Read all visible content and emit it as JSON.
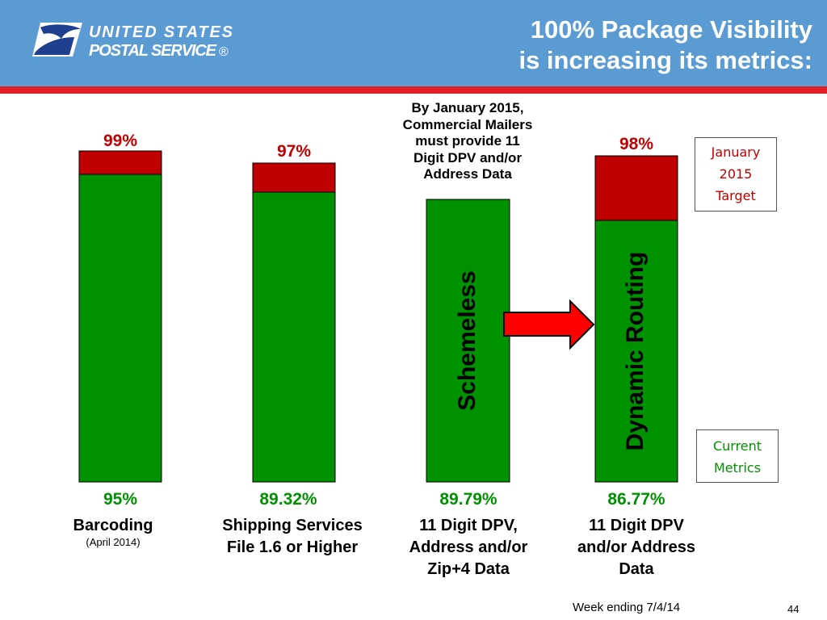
{
  "header": {
    "title_line1": "100% Package Visibility",
    "title_line2": "is increasing its metrics:",
    "logo_line1": "UNITED STATES",
    "logo_line2": "POSTAL SERVICE",
    "logo_mark": "®"
  },
  "colors": {
    "header_bg": "#5b9bd3",
    "header_rule": "#e41e26",
    "current": "#009100",
    "target": "#c00000",
    "arrow": "#ff0000"
  },
  "chart_data": {
    "type": "bar",
    "title": "",
    "xlabel": "",
    "ylabel": "",
    "ylim": [
      0,
      100
    ],
    "categories": [
      "Barcoding",
      "Shipping Services File 1.6 or Higher",
      "11 Digit DPV, Address and/or Zip+4 Data",
      "11 Digit DPV and/or Address Data"
    ],
    "series": [
      {
        "name": "Current Metrics",
        "values": [
          95,
          89.32,
          89.79,
          86.77
        ]
      },
      {
        "name": "January 2015 Target",
        "values": [
          99,
          97,
          null,
          98
        ]
      }
    ],
    "current_labels": [
      "95%",
      "89.32%",
      "89.79%",
      "86.77%"
    ],
    "target_labels": [
      "99%",
      "97%",
      "",
      "98%"
    ],
    "legend": {
      "target": [
        "January",
        "2015",
        "Target"
      ],
      "current": [
        "Current",
        "Metrics"
      ]
    }
  },
  "categories_display": [
    {
      "line1": "Barcoding",
      "line2": "",
      "sub": "(April 2014)"
    },
    {
      "line1": "Shipping Services",
      "line2": "File 1.6 or Higher",
      "sub": ""
    },
    {
      "line1": "11 Digit DPV,",
      "line2": "Address and/or",
      "line3": "Zip+4 Data",
      "sub": ""
    },
    {
      "line1": "11 Digit DPV",
      "line2": "and/or Address",
      "line3": "Data",
      "sub": ""
    }
  ],
  "bar_labels": {
    "schemeless": "Schemeless",
    "dynamic_routing": "Dynamic Routing"
  },
  "note": [
    "By January 2015,",
    "Commercial Mailers",
    "must provide 11",
    "Digit DPV and/or",
    "Address Data"
  ],
  "footer": {
    "week": "Week ending 7/4/14",
    "page": "44"
  }
}
